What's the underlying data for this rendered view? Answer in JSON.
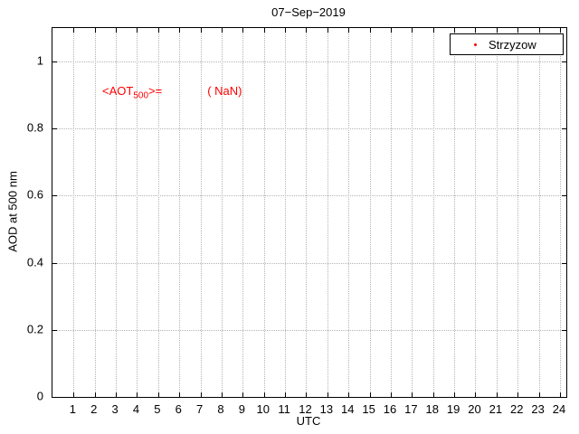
{
  "figure": {
    "background": "#ffffff"
  },
  "legend": {
    "label": "Strzyzow",
    "marker_color": "#ff0000"
  },
  "annotation": {
    "prefix": "<AOT",
    "sub": "500",
    "suffix": ">=",
    "value": "( NaN)",
    "color": "#ff0000"
  },
  "chart_data": {
    "type": "scatter",
    "title": "07−Sep−2019",
    "xlabel": "UTC",
    "ylabel": "AOD at 500 nm",
    "xlim": [
      0,
      24.3
    ],
    "ylim": [
      0,
      1.1
    ],
    "xticks": [
      1,
      2,
      3,
      4,
      5,
      6,
      7,
      8,
      9,
      10,
      11,
      12,
      13,
      14,
      15,
      16,
      17,
      18,
      19,
      20,
      21,
      22,
      23,
      24
    ],
    "yticks": [
      0,
      0.2,
      0.4,
      0.6,
      0.8,
      1
    ],
    "grid": true,
    "grid_style": "dotted",
    "legend": {
      "position": "top-right",
      "entries": [
        {
          "label": "Strzyzow",
          "marker": "point",
          "color": "#ff0000"
        }
      ]
    },
    "series": [
      {
        "name": "Strzyzow",
        "x": [],
        "y": []
      }
    ],
    "annotations": [
      {
        "text": "<AOT500>= ( NaN)",
        "color": "#ff0000",
        "x": 2.4,
        "y": 0.9
      }
    ]
  }
}
